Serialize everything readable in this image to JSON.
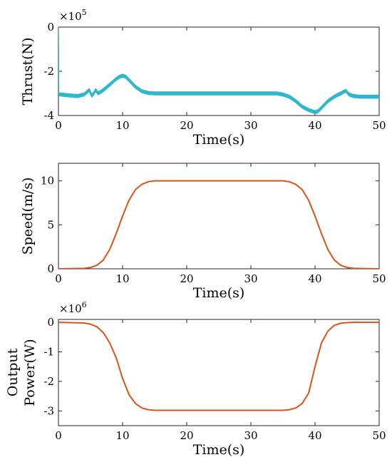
{
  "chart_data": [
    {
      "type": "line",
      "xlabel": "Time(s)",
      "ylabel": "Thrust(N)",
      "ylabel_lines": [
        "Thrust(N)"
      ],
      "exponent": {
        "base": "×10",
        "power": "5"
      },
      "xlim": [
        0,
        50
      ],
      "ylim": [
        -4,
        0
      ],
      "xticks": [
        0,
        10,
        20,
        30,
        40,
        50
      ],
      "yticks": [
        -4,
        -2,
        0
      ],
      "ytick_labels": [
        "-4",
        "-2",
        "0"
      ],
      "grid": false,
      "color": "#2FB8CC",
      "oscillation_band": 0.07,
      "series": [
        {
          "x": [
            0,
            0.05,
            0.15,
            0.3,
            1,
            2,
            3,
            4,
            4.8,
            5.2,
            5.5,
            5.8,
            6.2,
            7,
            8,
            9,
            9.5,
            10,
            10.5,
            11,
            12,
            13,
            14,
            15,
            20,
            25,
            30,
            34,
            35,
            36,
            37,
            38,
            39,
            39.5,
            40,
            40.5,
            41,
            42,
            43,
            44,
            44.8,
            45.3,
            46,
            47,
            48,
            50
          ],
          "y": [
            0,
            -3.0,
            -3.05,
            -3.05,
            -3.07,
            -3.1,
            -3.12,
            -3.05,
            -2.85,
            -3.1,
            -3.0,
            -2.85,
            -3.0,
            -2.85,
            -2.6,
            -2.35,
            -2.25,
            -2.2,
            -2.25,
            -2.4,
            -2.7,
            -2.9,
            -2.98,
            -3.0,
            -3.0,
            -3.0,
            -3.0,
            -3.0,
            -3.05,
            -3.15,
            -3.35,
            -3.6,
            -3.75,
            -3.8,
            -3.85,
            -3.8,
            -3.65,
            -3.35,
            -3.15,
            -3.0,
            -2.88,
            -3.05,
            -3.12,
            -3.15,
            -3.15,
            -3.15
          ]
        }
      ]
    },
    {
      "type": "line",
      "xlabel": "Time(s)",
      "ylabel": "Speed(m/s)",
      "ylabel_lines": [
        "Speed(m/s)"
      ],
      "xlim": [
        0,
        50
      ],
      "ylim": [
        0,
        12
      ],
      "xticks": [
        0,
        10,
        20,
        30,
        40,
        50
      ],
      "yticks": [
        0,
        5,
        10
      ],
      "ytick_labels": [
        "0",
        "5",
        "10"
      ],
      "grid": false,
      "color": "#D9541A",
      "series": [
        {
          "x": [
            0,
            4,
            5,
            6,
            7,
            8,
            9,
            10,
            11,
            12,
            13,
            14,
            15,
            20,
            30,
            35,
            36,
            37,
            38,
            39,
            40,
            41,
            42,
            43,
            44,
            45,
            46,
            50
          ],
          "y": [
            0,
            0.05,
            0.15,
            0.4,
            1.0,
            2.2,
            4.0,
            6.0,
            7.8,
            9.0,
            9.6,
            9.9,
            10.0,
            10.0,
            10.0,
            10.0,
            9.9,
            9.6,
            9.0,
            7.8,
            6.0,
            4.0,
            2.2,
            1.0,
            0.4,
            0.15,
            0.05,
            0
          ]
        }
      ]
    },
    {
      "type": "line",
      "xlabel": "Time(s)",
      "ylabel": "Output Power(W)",
      "ylabel_lines": [
        "Output",
        "Power(W)"
      ],
      "exponent": {
        "base": "×10",
        "power": "6"
      },
      "xlim": [
        0,
        50
      ],
      "ylim": [
        -3.5,
        0.1
      ],
      "xticks": [
        0,
        10,
        20,
        30,
        40,
        50
      ],
      "yticks": [
        -3,
        -2,
        -1,
        0
      ],
      "ytick_labels": [
        "-3",
        "-2",
        "-1",
        "0"
      ],
      "grid": false,
      "color": "#D9541A",
      "series": [
        {
          "x": [
            0,
            4,
            5,
            6,
            7,
            8,
            9,
            10,
            11,
            12,
            13,
            14,
            15,
            20,
            30,
            35,
            36,
            37,
            38,
            39,
            40,
            41,
            42,
            43,
            44,
            45,
            46,
            50
          ],
          "y": [
            0,
            -0.02,
            -0.06,
            -0.15,
            -0.35,
            -0.7,
            -1.2,
            -1.9,
            -2.45,
            -2.75,
            -2.9,
            -2.96,
            -2.98,
            -2.98,
            -2.98,
            -2.98,
            -2.96,
            -2.9,
            -2.75,
            -2.4,
            -1.5,
            -0.7,
            -0.3,
            -0.1,
            -0.03,
            -0.01,
            0,
            0
          ]
        }
      ]
    }
  ]
}
